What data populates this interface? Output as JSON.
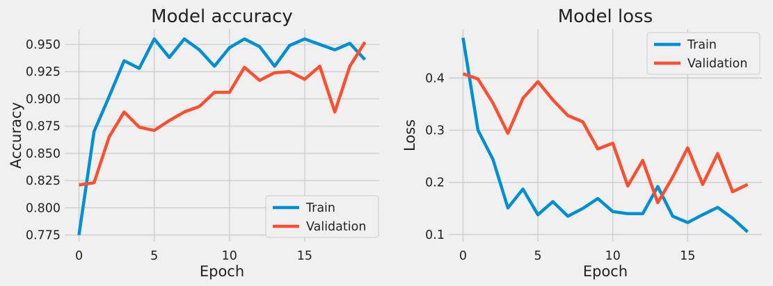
{
  "chart_data": [
    {
      "type": "line",
      "title": "Model accuracy",
      "xlabel": "Epoch",
      "ylabel": "Accuracy",
      "xlim": [
        -0.95,
        19.95
      ],
      "ylim": [
        0.769,
        0.964
      ],
      "xticks": [
        0,
        5,
        10,
        15
      ],
      "yticks": [
        0.775,
        0.8,
        0.825,
        0.85,
        0.875,
        0.9,
        0.925,
        0.95
      ],
      "ytick_labels": [
        "0.775",
        "0.800",
        "0.825",
        "0.850",
        "0.875",
        "0.900",
        "0.925",
        "0.950"
      ],
      "grid": true,
      "legend_position": "lower-right",
      "x": [
        0,
        1,
        2,
        3,
        4,
        5,
        6,
        7,
        8,
        9,
        10,
        11,
        12,
        13,
        14,
        15,
        16,
        17,
        18,
        19
      ],
      "series": [
        {
          "name": "Train",
          "color": "#008fd5",
          "values": [
            0.775,
            0.87,
            0.902,
            0.935,
            0.928,
            0.955,
            0.938,
            0.955,
            0.945,
            0.93,
            0.947,
            0.955,
            0.948,
            0.93,
            0.949,
            0.955,
            0.95,
            0.945,
            0.951,
            0.936
          ]
        },
        {
          "name": "Validation",
          "color": "#fc4f30",
          "values": [
            0.821,
            0.823,
            0.865,
            0.888,
            0.874,
            0.871,
            0.88,
            0.888,
            0.893,
            0.906,
            0.906,
            0.929,
            0.917,
            0.924,
            0.925,
            0.918,
            0.93,
            0.888,
            0.93,
            0.952
          ]
        }
      ]
    },
    {
      "type": "line",
      "title": "Model loss",
      "xlabel": "Epoch",
      "ylabel": "Loss",
      "xlim": [
        -0.95,
        19.95
      ],
      "ylim": [
        0.0865,
        0.4935
      ],
      "xticks": [
        0,
        5,
        10,
        15
      ],
      "yticks": [
        0.1,
        0.2,
        0.3,
        0.4
      ],
      "ytick_labels": [
        "0.1",
        "0.2",
        "0.3",
        "0.4"
      ],
      "grid": true,
      "legend_position": "upper-right",
      "x": [
        0,
        1,
        2,
        3,
        4,
        5,
        6,
        7,
        8,
        9,
        10,
        11,
        12,
        13,
        14,
        15,
        16,
        17,
        18,
        19
      ],
      "series": [
        {
          "name": "Train",
          "color": "#008fd5",
          "values": [
            0.477,
            0.3,
            0.244,
            0.151,
            0.187,
            0.138,
            0.163,
            0.135,
            0.15,
            0.169,
            0.144,
            0.14,
            0.14,
            0.192,
            0.135,
            0.123,
            0.138,
            0.152,
            0.131,
            0.105
          ]
        },
        {
          "name": "Validation",
          "color": "#fc4f30",
          "values": [
            0.408,
            0.398,
            0.352,
            0.294,
            0.361,
            0.393,
            0.358,
            0.328,
            0.316,
            0.264,
            0.275,
            0.193,
            0.242,
            0.161,
            0.21,
            0.266,
            0.196,
            0.255,
            0.182,
            0.196
          ]
        }
      ]
    }
  ]
}
